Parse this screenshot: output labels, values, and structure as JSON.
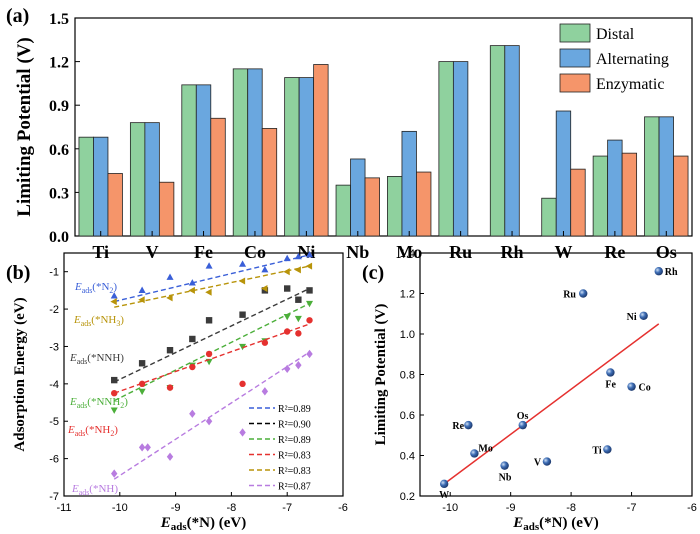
{
  "chart_data": [
    {
      "panel": "(a)",
      "type": "bar",
      "ylabel": "Limiting Potential (V)",
      "xlabel": "",
      "ylim": [
        0,
        1.5
      ],
      "yticks": [
        "0.0",
        "0.3",
        "0.6",
        "0.9",
        "1.2",
        "1.5"
      ],
      "categories": [
        "Ti",
        "V",
        "Fe",
        "Co",
        "Ni",
        "Nb",
        "Mo",
        "Ru",
        "Rh",
        "W",
        "Re",
        "Os"
      ],
      "series": [
        {
          "name": "Distal",
          "color": "#8fd19e",
          "values": [
            0.68,
            0.78,
            1.04,
            1.15,
            1.09,
            0.35,
            0.41,
            1.2,
            1.31,
            0.26,
            0.55,
            0.82
          ]
        },
        {
          "name": "Alternating",
          "color": "#6aa7df",
          "values": [
            0.68,
            0.78,
            1.04,
            1.15,
            1.09,
            0.53,
            0.72,
            1.2,
            1.31,
            0.86,
            0.66,
            0.82
          ]
        },
        {
          "name": "Enzymatic",
          "color": "#f5956a",
          "values": [
            0.43,
            0.37,
            0.81,
            0.74,
            1.18,
            0.4,
            0.44,
            null,
            null,
            0.46,
            0.57,
            0.55
          ]
        }
      ],
      "legend_position": "top-right"
    },
    {
      "panel": "(b)",
      "type": "scatter",
      "xlabel": "E_ads(*N) (eV)",
      "ylabel": "Adsorption Energy (eV)",
      "xlim": [
        -11,
        -6
      ],
      "ylim": [
        -7,
        -0.5
      ],
      "xticks": [
        "-11",
        "-10",
        "-9",
        "-8",
        "-7",
        "-6"
      ],
      "yticks": [
        "-7",
        "-6",
        "-5",
        "-4",
        "-3",
        "-2",
        "-1"
      ],
      "series": [
        {
          "name": "*N2",
          "label_prefix": "E",
          "label_sub": "ads",
          "label_rest": "(*N",
          "label_sub2": "2",
          "label_close": ")",
          "color": "#3a5fd8",
          "marker": "triangle-up",
          "r2": "R²=0.89",
          "x": [
            -10.1,
            -9.6,
            -9.1,
            -8.7,
            -8.4,
            -7.8,
            -7.4,
            -7.0,
            -6.8,
            -6.6
          ],
          "y": [
            -1.65,
            -1.5,
            -1.15,
            -1.3,
            -0.85,
            -0.8,
            -0.95,
            -0.65,
            -0.6,
            -0.55
          ],
          "fit": [
            [
              -10.1,
              -1.8
            ],
            [
              -6.6,
              -0.55
            ]
          ]
        },
        {
          "name": "*NNH",
          "label_prefix": "E",
          "label_sub": "ads",
          "label_rest": "(*NNH)",
          "label_sub2": "",
          "label_close": "",
          "color": "#3b3b3b",
          "marker": "square",
          "r2": "R²=0.90",
          "x": [
            -10.1,
            -9.6,
            -9.1,
            -8.7,
            -8.4,
            -7.8,
            -7.4,
            -7.0,
            -6.8,
            -6.6
          ],
          "y": [
            -3.9,
            -3.45,
            -3.1,
            -2.8,
            -2.3,
            -2.15,
            -1.5,
            -1.45,
            -1.75,
            -1.5
          ],
          "fit": [
            [
              -10.1,
              -3.95
            ],
            [
              -6.6,
              -1.45
            ]
          ]
        },
        {
          "name": "*NNH2",
          "label_prefix": "E",
          "label_sub": "ads",
          "label_rest": "(*NNH",
          "label_sub2": "2",
          "label_close": ")",
          "color": "#4caf3a",
          "marker": "triangle-down",
          "r2": "R²=0.89",
          "x": [
            -10.1,
            -9.6,
            -9.1,
            -8.7,
            -8.4,
            -7.8,
            -7.4,
            -7.0,
            -6.8,
            -6.6
          ],
          "y": [
            -4.7,
            -4.2,
            -4.1,
            -3.5,
            -3.4,
            -3.0,
            -2.85,
            -2.2,
            -2.25,
            -1.85
          ],
          "fit": [
            [
              -10.1,
              -4.45
            ],
            [
              -6.6,
              -1.85
            ]
          ]
        },
        {
          "name": "*NH2",
          "label_prefix": "E",
          "label_sub": "ads",
          "label_rest": "(*NH",
          "label_sub2": "2",
          "label_close": ")",
          "color": "#e5312f",
          "marker": "circle",
          "r2": "R²=0.83",
          "x": [
            -10.1,
            -9.6,
            -9.1,
            -8.7,
            -8.4,
            -7.8,
            -7.4,
            -7.0,
            -6.8,
            -6.6
          ],
          "y": [
            -4.25,
            -4.0,
            -4.1,
            -3.55,
            -3.2,
            -4.0,
            -2.9,
            -2.6,
            -2.65,
            -2.3
          ],
          "fit": [
            [
              -10.1,
              -4.25
            ],
            [
              -6.6,
              -2.4
            ]
          ]
        },
        {
          "name": "*NH3",
          "label_prefix": "E",
          "label_sub": "ads",
          "label_rest": "(*NH",
          "label_sub2": "3",
          "label_close": ")",
          "color": "#b8940a",
          "marker": "triangle-left",
          "r2": "R²=0.83",
          "x": [
            -10.1,
            -9.6,
            -9.1,
            -8.7,
            -8.4,
            -7.8,
            -7.4,
            -7.0,
            -6.8,
            -6.6
          ],
          "y": [
            -1.8,
            -1.75,
            -1.7,
            -1.5,
            -1.55,
            -1.25,
            -1.45,
            -1.0,
            -0.95,
            -0.85
          ],
          "fit": [
            [
              -10.1,
              -1.95
            ],
            [
              -6.6,
              -0.85
            ]
          ]
        },
        {
          "name": "*NH",
          "label_prefix": "E",
          "label_sub": "ads",
          "label_rest": "(*NH)",
          "label_sub2": "",
          "label_close": "",
          "color": "#b87ce0",
          "marker": "diamond",
          "r2": "R²=0.87",
          "x": [
            -10.1,
            -9.6,
            -9.5,
            -9.1,
            -8.7,
            -8.4,
            -7.8,
            -7.4,
            -7.0,
            -6.8,
            -6.6
          ],
          "y": [
            -6.4,
            -5.7,
            -5.7,
            -5.95,
            -4.8,
            -5.0,
            -5.3,
            -4.2,
            -3.6,
            -3.5,
            -3.2
          ],
          "fit": [
            [
              -10.1,
              -6.55
            ],
            [
              -6.6,
              -3.15
            ]
          ]
        }
      ]
    },
    {
      "panel": "(c)",
      "type": "scatter",
      "xlabel": "E_ads(*N) (eV)",
      "ylabel": "Limiting Potential (V)",
      "xlim": [
        -10.5,
        -6
      ],
      "ylim": [
        0.2,
        1.4
      ],
      "xticks": [
        "-10",
        "-9",
        "-8",
        "-7",
        "-6"
      ],
      "yticks": [
        "0.2",
        "0.4",
        "0.6",
        "0.8",
        "1.0",
        "1.2",
        "1.4"
      ],
      "points": [
        {
          "label": "W",
          "x": -10.1,
          "y": 0.26
        },
        {
          "label": "Re",
          "x": -9.7,
          "y": 0.55
        },
        {
          "label": "Mo",
          "x": -9.6,
          "y": 0.41
        },
        {
          "label": "Nb",
          "x": -9.1,
          "y": 0.35
        },
        {
          "label": "Os",
          "x": -8.8,
          "y": 0.55
        },
        {
          "label": "V",
          "x": -8.4,
          "y": 0.37
        },
        {
          "label": "Ru",
          "x": -7.8,
          "y": 1.2
        },
        {
          "label": "Ti",
          "x": -7.4,
          "y": 0.43
        },
        {
          "label": "Fe",
          "x": -7.35,
          "y": 0.81
        },
        {
          "label": "Ni",
          "x": -6.8,
          "y": 1.09
        },
        {
          "label": "Co",
          "x": -7.0,
          "y": 0.74
        },
        {
          "label": "Rh",
          "x": -6.55,
          "y": 1.31
        }
      ],
      "fit": [
        [
          -10.1,
          0.26
        ],
        [
          -6.55,
          1.05
        ]
      ],
      "fit_color": "#e5312f"
    }
  ]
}
